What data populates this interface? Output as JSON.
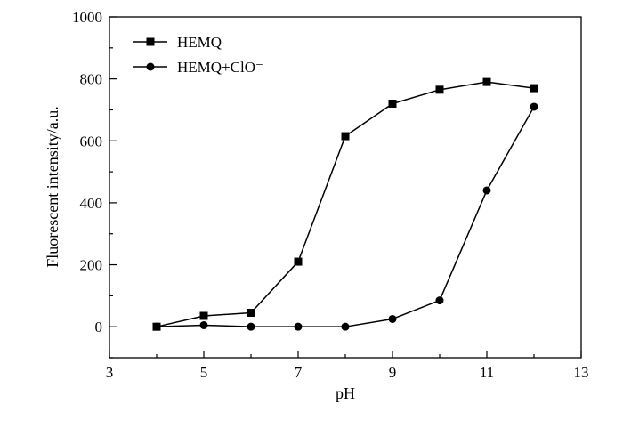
{
  "chart_data": {
    "type": "line",
    "title": "",
    "xlabel": "pH",
    "ylabel": "Fluorescent intensity/a.u.",
    "xlim": [
      3,
      13
    ],
    "ylim": [
      -100,
      1000
    ],
    "x_ticks": [
      3,
      5,
      7,
      9,
      11,
      13
    ],
    "y_ticks": [
      0,
      200,
      400,
      600,
      800,
      1000
    ],
    "grid": false,
    "legend_position": "top-left",
    "series": [
      {
        "name": "HEMQ",
        "marker": "square",
        "color": "#000000",
        "x": [
          4,
          5,
          6,
          7,
          8,
          9,
          10,
          11,
          12
        ],
        "y": [
          0,
          35,
          45,
          210,
          615,
          720,
          765,
          790,
          770
        ]
      },
      {
        "name": "HEMQ+ClO⁻",
        "marker": "circle",
        "color": "#000000",
        "x": [
          4,
          5,
          6,
          7,
          8,
          9,
          10,
          11,
          12
        ],
        "y": [
          0,
          5,
          0,
          0,
          0,
          25,
          85,
          440,
          710
        ]
      }
    ]
  }
}
